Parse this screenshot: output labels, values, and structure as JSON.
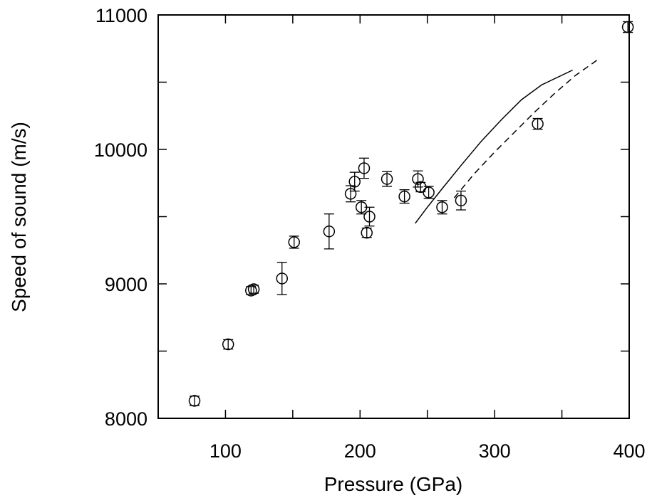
{
  "chart_data": {
    "type": "scatter",
    "title": "",
    "xlabel": "Pressure (GPa)",
    "ylabel": "Speed of sound (m/s)",
    "xlim": [
      50,
      400
    ],
    "ylim": [
      8000,
      11000
    ],
    "x_ticks": [
      100,
      200,
      300,
      400
    ],
    "x_ticks_minor": [
      50,
      150,
      250,
      350
    ],
    "y_ticks": [
      8000,
      9000,
      10000,
      11000
    ],
    "y_ticks_minor": [
      8500,
      9500,
      10500
    ],
    "x_tick_labels": [
      "100",
      "200",
      "300",
      "400"
    ],
    "y_tick_labels": [
      "8000",
      "9000",
      "10000",
      "11000"
    ],
    "grid": false,
    "legend": "none",
    "points": [
      {
        "x": 77,
        "y": 8130,
        "err": 35
      },
      {
        "x": 102,
        "y": 8550,
        "err": 35
      },
      {
        "x": 119,
        "y": 8950,
        "err": 30
      },
      {
        "x": 121,
        "y": 8960,
        "err": 30
      },
      {
        "x": 142,
        "y": 9040,
        "err": 120
      },
      {
        "x": 151,
        "y": 9310,
        "err": 45
      },
      {
        "x": 177,
        "y": 9390,
        "err": 130
      },
      {
        "x": 193,
        "y": 9670,
        "err": 60
      },
      {
        "x": 196,
        "y": 9760,
        "err": 70
      },
      {
        "x": 201,
        "y": 9570,
        "err": 50
      },
      {
        "x": 203,
        "y": 9860,
        "err": 75
      },
      {
        "x": 205,
        "y": 9380,
        "err": 35
      },
      {
        "x": 207,
        "y": 9500,
        "err": 70
      },
      {
        "x": 220,
        "y": 9780,
        "err": 55
      },
      {
        "x": 233,
        "y": 9650,
        "err": 50
      },
      {
        "x": 243,
        "y": 9780,
        "err": 60
      },
      {
        "x": 245,
        "y": 9720,
        "err": 35
      },
      {
        "x": 251,
        "y": 9680,
        "err": 45
      },
      {
        "x": 261,
        "y": 9570,
        "err": 50
      },
      {
        "x": 275,
        "y": 9620,
        "err": 70
      },
      {
        "x": 332,
        "y": 10190,
        "err": 40
      },
      {
        "x": 399,
        "y": 10910,
        "err": 40
      }
    ],
    "lines": [
      {
        "style": "solid",
        "color": "#000000",
        "points": [
          [
            241,
            9450
          ],
          [
            250,
            9570
          ],
          [
            262,
            9720
          ],
          [
            275,
            9880
          ],
          [
            290,
            10060
          ],
          [
            305,
            10220
          ],
          [
            320,
            10370
          ],
          [
            335,
            10480
          ],
          [
            358,
            10590
          ]
        ]
      },
      {
        "style": "dashed",
        "color": "#000000",
        "points": [
          [
            270,
            9640
          ],
          [
            285,
            9820
          ],
          [
            300,
            9980
          ],
          [
            315,
            10130
          ],
          [
            330,
            10280
          ],
          [
            345,
            10420
          ],
          [
            360,
            10550
          ],
          [
            377,
            10670
          ]
        ]
      }
    ],
    "marker_color": "#000000"
  }
}
